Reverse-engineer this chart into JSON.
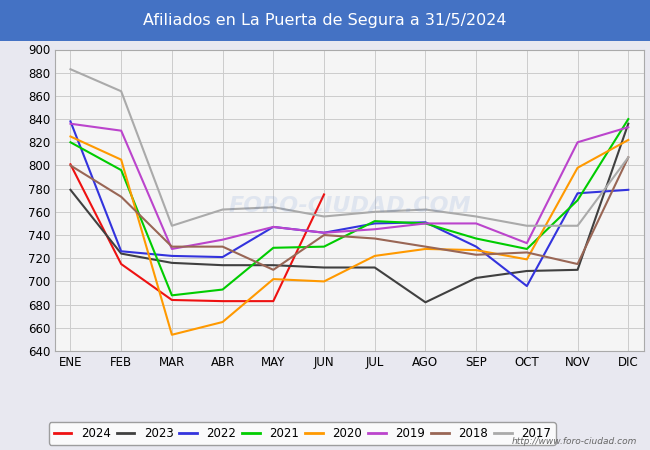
{
  "title": "Afiliados en La Puerta de Segura a 31/5/2024",
  "title_bg_color": "#4472c4",
  "title_text_color": "white",
  "ylim": [
    640,
    900
  ],
  "yticks": [
    640,
    660,
    680,
    700,
    720,
    740,
    760,
    780,
    800,
    820,
    840,
    860,
    880,
    900
  ],
  "months": [
    "ENE",
    "FEB",
    "MAR",
    "ABR",
    "MAY",
    "JUN",
    "JUL",
    "AGO",
    "SEP",
    "OCT",
    "NOV",
    "DIC"
  ],
  "watermark": "FORO-CIUDAD.COM",
  "url": "http://www.foro-ciudad.com",
  "series": {
    "2024": {
      "color": "#ee1111",
      "data": [
        801,
        715,
        684,
        683,
        683,
        775,
        null,
        null,
        null,
        null,
        null,
        null
      ]
    },
    "2023": {
      "color": "#404040",
      "data": [
        779,
        724,
        716,
        714,
        714,
        712,
        712,
        682,
        703,
        709,
        710,
        836
      ]
    },
    "2022": {
      "color": "#3333dd",
      "data": [
        838,
        726,
        722,
        721,
        747,
        742,
        750,
        751,
        730,
        696,
        776,
        779
      ]
    },
    "2021": {
      "color": "#00cc00",
      "data": [
        820,
        796,
        688,
        693,
        729,
        730,
        752,
        750,
        737,
        728,
        770,
        840
      ]
    },
    "2020": {
      "color": "#ff9900",
      "data": [
        825,
        805,
        654,
        665,
        702,
        700,
        722,
        728,
        727,
        719,
        798,
        822
      ]
    },
    "2019": {
      "color": "#bb44cc",
      "data": [
        836,
        830,
        728,
        736,
        747,
        742,
        745,
        750,
        750,
        733,
        820,
        833
      ]
    },
    "2018": {
      "color": "#996655",
      "data": [
        800,
        773,
        730,
        730,
        710,
        740,
        737,
        730,
        723,
        725,
        715,
        807
      ]
    },
    "2017": {
      "color": "#aaaaaa",
      "data": [
        883,
        864,
        748,
        762,
        764,
        756,
        760,
        762,
        756,
        748,
        748,
        807
      ]
    }
  },
  "bg_color": "#e8e8f0",
  "plot_bg_color": "#f5f5f5",
  "grid_color": "#cccccc",
  "legend_order": [
    "2024",
    "2023",
    "2022",
    "2021",
    "2020",
    "2019",
    "2018",
    "2017"
  ]
}
